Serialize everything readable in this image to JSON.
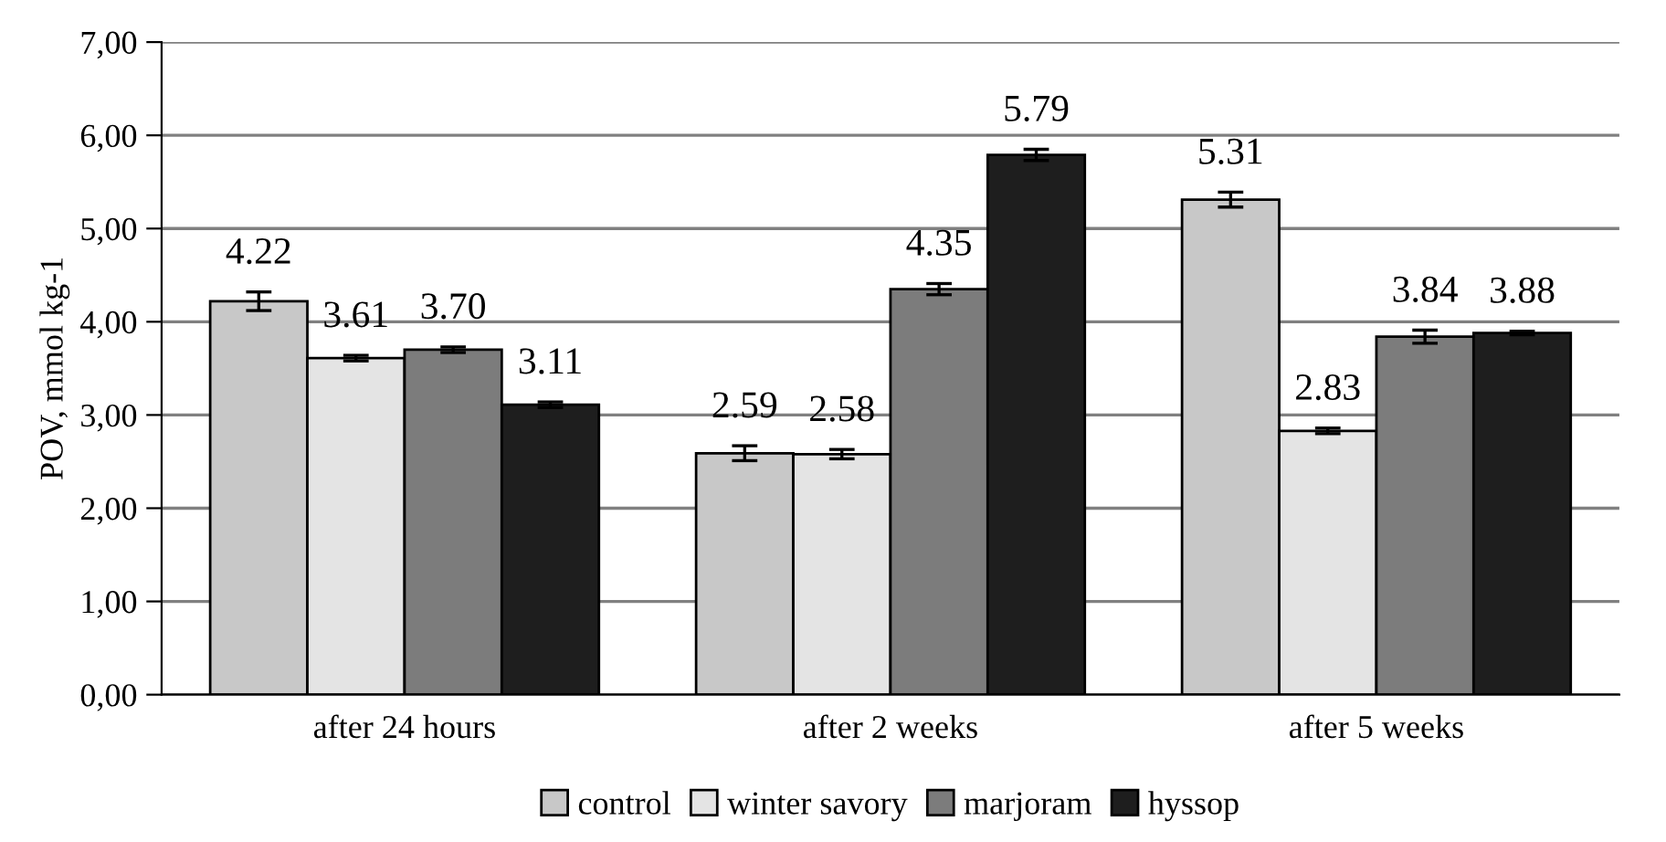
{
  "chart_data": {
    "type": "bar",
    "ylabel": "POV, mmol kg-1",
    "categories": [
      "after 24 hours",
      "after 2 weeks",
      "after 5 weeks"
    ],
    "series": [
      {
        "name": "control",
        "color": "#c8c8c8",
        "values": [
          4.22,
          2.59,
          5.31
        ],
        "value_labels": [
          "4.22",
          "2.59",
          "5.31"
        ],
        "errors": [
          0.1,
          0.08,
          0.08
        ]
      },
      {
        "name": "winter savory",
        "color": "#e4e4e4",
        "values": [
          3.61,
          2.58,
          2.83
        ],
        "value_labels": [
          "3.61",
          "2.58",
          "2.83"
        ],
        "errors": [
          0.03,
          0.05,
          0.03
        ]
      },
      {
        "name": "marjoram",
        "color": "#7c7c7c",
        "values": [
          3.7,
          4.35,
          3.84
        ],
        "value_labels": [
          "3.70",
          "4.35",
          "3.84"
        ],
        "errors": [
          0.03,
          0.06,
          0.07
        ]
      },
      {
        "name": "hyssop",
        "color": "#1e1e1e",
        "values": [
          3.11,
          5.79,
          3.88
        ],
        "value_labels": [
          "3.11",
          "5.79",
          "3.88"
        ],
        "errors": [
          0.03,
          0.06,
          0.02
        ]
      }
    ],
    "ylim": [
      0,
      7
    ],
    "yticks": [
      {
        "value": 0,
        "label": "0,00"
      },
      {
        "value": 1,
        "label": "1,00"
      },
      {
        "value": 2,
        "label": "2,00"
      },
      {
        "value": 3,
        "label": "3,00"
      },
      {
        "value": 4,
        "label": "4,00"
      },
      {
        "value": 5,
        "label": "5,00"
      },
      {
        "value": 6,
        "label": "6,00"
      },
      {
        "value": 7,
        "label": "7,00"
      }
    ],
    "grid": "y",
    "legend": "bottom"
  }
}
